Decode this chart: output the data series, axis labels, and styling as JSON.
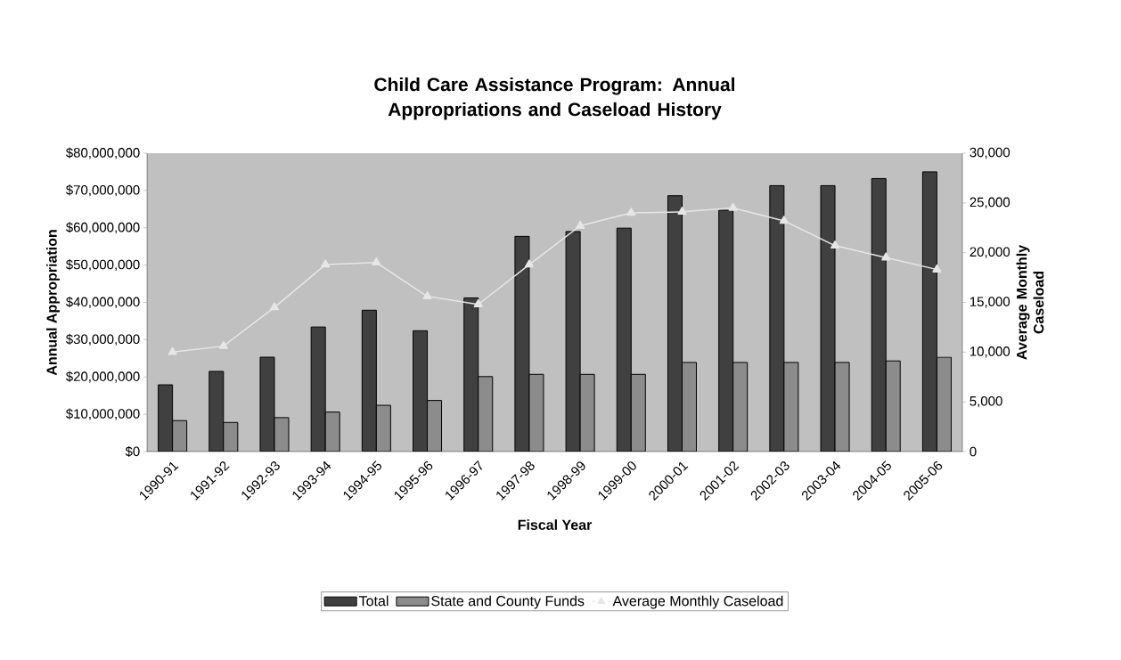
{
  "chart_data": {
    "type": "bar",
    "title": "Child Care Assistance Program:   Annual Appropriations and Caseload History",
    "xlabel": "Fiscal Year",
    "ylabel": "Annual Appropriation",
    "y2label": "Average Monthly Caseload",
    "categories": [
      "1990-91",
      "1991-92",
      "1992-93",
      "1993-94",
      "1994-95",
      "1995-96",
      "1996-97",
      "1997-98",
      "1998-99",
      "1999-00",
      "2000-01",
      "2001-02",
      "2002-03",
      "2003-04",
      "2004-05",
      "2005-06"
    ],
    "series": [
      {
        "name": "Total",
        "color": "#404040",
        "values": [
          17900000,
          21500000,
          25300000,
          33400000,
          37900000,
          32400000,
          41200000,
          57700000,
          59000000,
          59900000,
          68600000,
          64700000,
          71300000,
          71300000,
          73200000,
          75000000
        ]
      },
      {
        "name": "State and County Funds",
        "color": "#8c8c8c",
        "values": [
          8300000,
          7800000,
          9100000,
          10600000,
          12400000,
          13700000,
          20100000,
          20700000,
          20700000,
          20700000,
          23900000,
          23900000,
          23900000,
          23900000,
          24300000,
          25300000
        ]
      },
      {
        "name": "Average Monthly Caseload",
        "type": "line",
        "axis": "y2",
        "marker": "triangle",
        "color": "#e6e6e6",
        "values": [
          10000,
          10600,
          14500,
          18800,
          19000,
          15600,
          14800,
          18800,
          22700,
          24000,
          24100,
          24500,
          23200,
          20700,
          19500,
          18300
        ]
      }
    ],
    "ylim": [
      0,
      80000000
    ],
    "yticks": [
      {
        "value": 0,
        "label": "$0"
      },
      {
        "value": 10000000,
        "label": "$10,000,000"
      },
      {
        "value": 20000000,
        "label": "$20,000,000"
      },
      {
        "value": 30000000,
        "label": "$30,000,000"
      },
      {
        "value": 40000000,
        "label": "$40,000,000"
      },
      {
        "value": 50000000,
        "label": "$50,000,000"
      },
      {
        "value": 60000000,
        "label": "$60,000,000"
      },
      {
        "value": 70000000,
        "label": "$70,000,000"
      },
      {
        "value": 80000000,
        "label": "$80,000,000"
      }
    ],
    "y2lim": [
      0,
      30000
    ],
    "y2ticks": [
      0,
      {
        "value": 5000,
        "label": "5,000"
      },
      {
        "value": 10000,
        "label": "10,000"
      },
      {
        "value": 15000,
        "label": "15,000"
      },
      {
        "value": 20000,
        "label": "20,000"
      },
      {
        "value": 25000,
        "label": "25,000"
      },
      {
        "value": 30000,
        "label": "30,000"
      }
    ],
    "legend": "bottom"
  }
}
